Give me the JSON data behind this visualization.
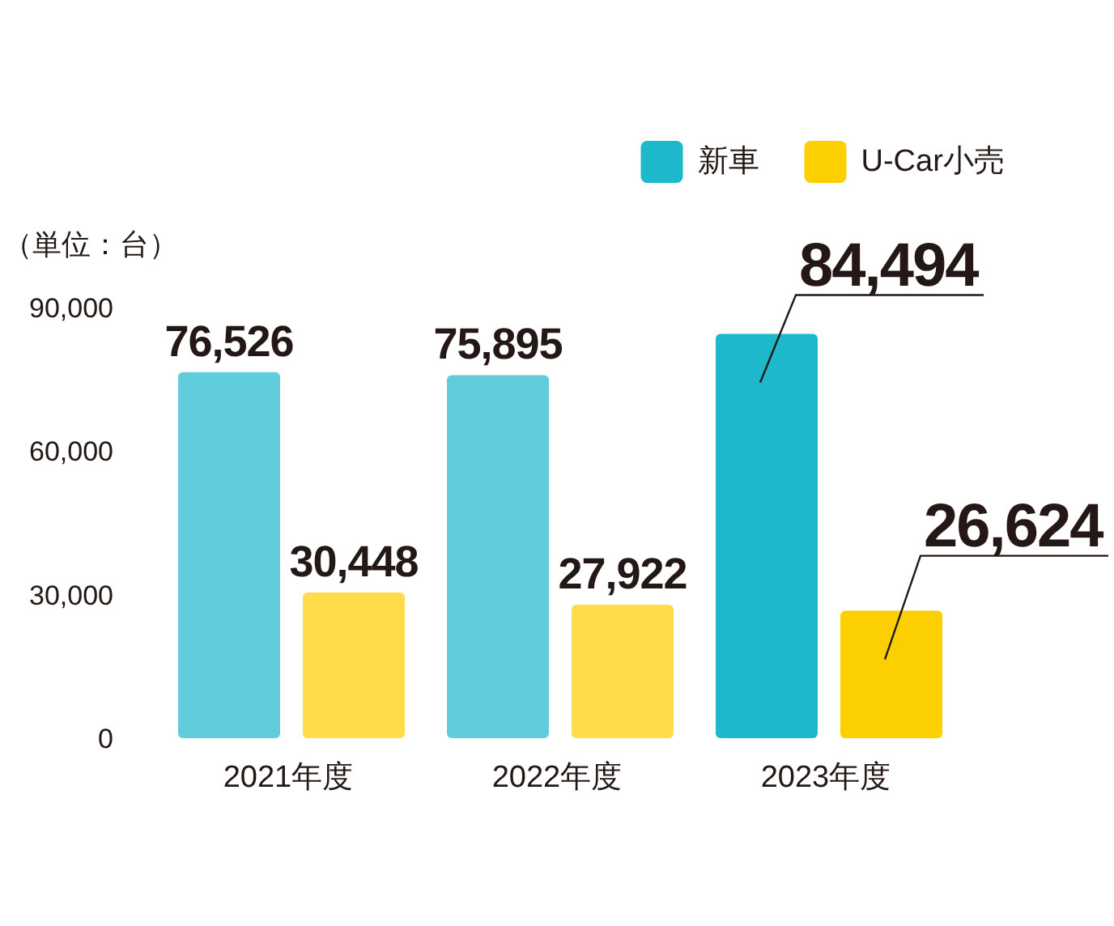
{
  "chart_data": {
    "type": "bar",
    "ylabel": "（単位：台）",
    "categories": [
      "2021年度",
      "2022年度",
      "2023年度"
    ],
    "series": [
      {
        "name": "新車",
        "color": "#1db8cc",
        "colors": [
          "#60ccdc",
          "#60ccdc",
          "#1db8cc"
        ],
        "values": [
          76526,
          75895,
          84494
        ],
        "value_labels": [
          "76,526",
          "75,895",
          "84,494"
        ]
      },
      {
        "name": "U-Car小売",
        "color": "#fcd000",
        "colors": [
          "#ffdc4a",
          "#ffdc4a",
          "#fcd000"
        ],
        "values": [
          30448,
          27922,
          26624
        ],
        "value_labels": [
          "30,448",
          "27,922",
          "26,624"
        ]
      }
    ],
    "ylim": [
      0,
      90000
    ],
    "yticks": [
      0,
      {
        "value": 30000,
        "label": "30,000"
      },
      {
        "value": 60000,
        "label": "60,000"
      },
      {
        "value": 90000,
        "label": "90,000"
      }
    ],
    "legend": "top right"
  }
}
